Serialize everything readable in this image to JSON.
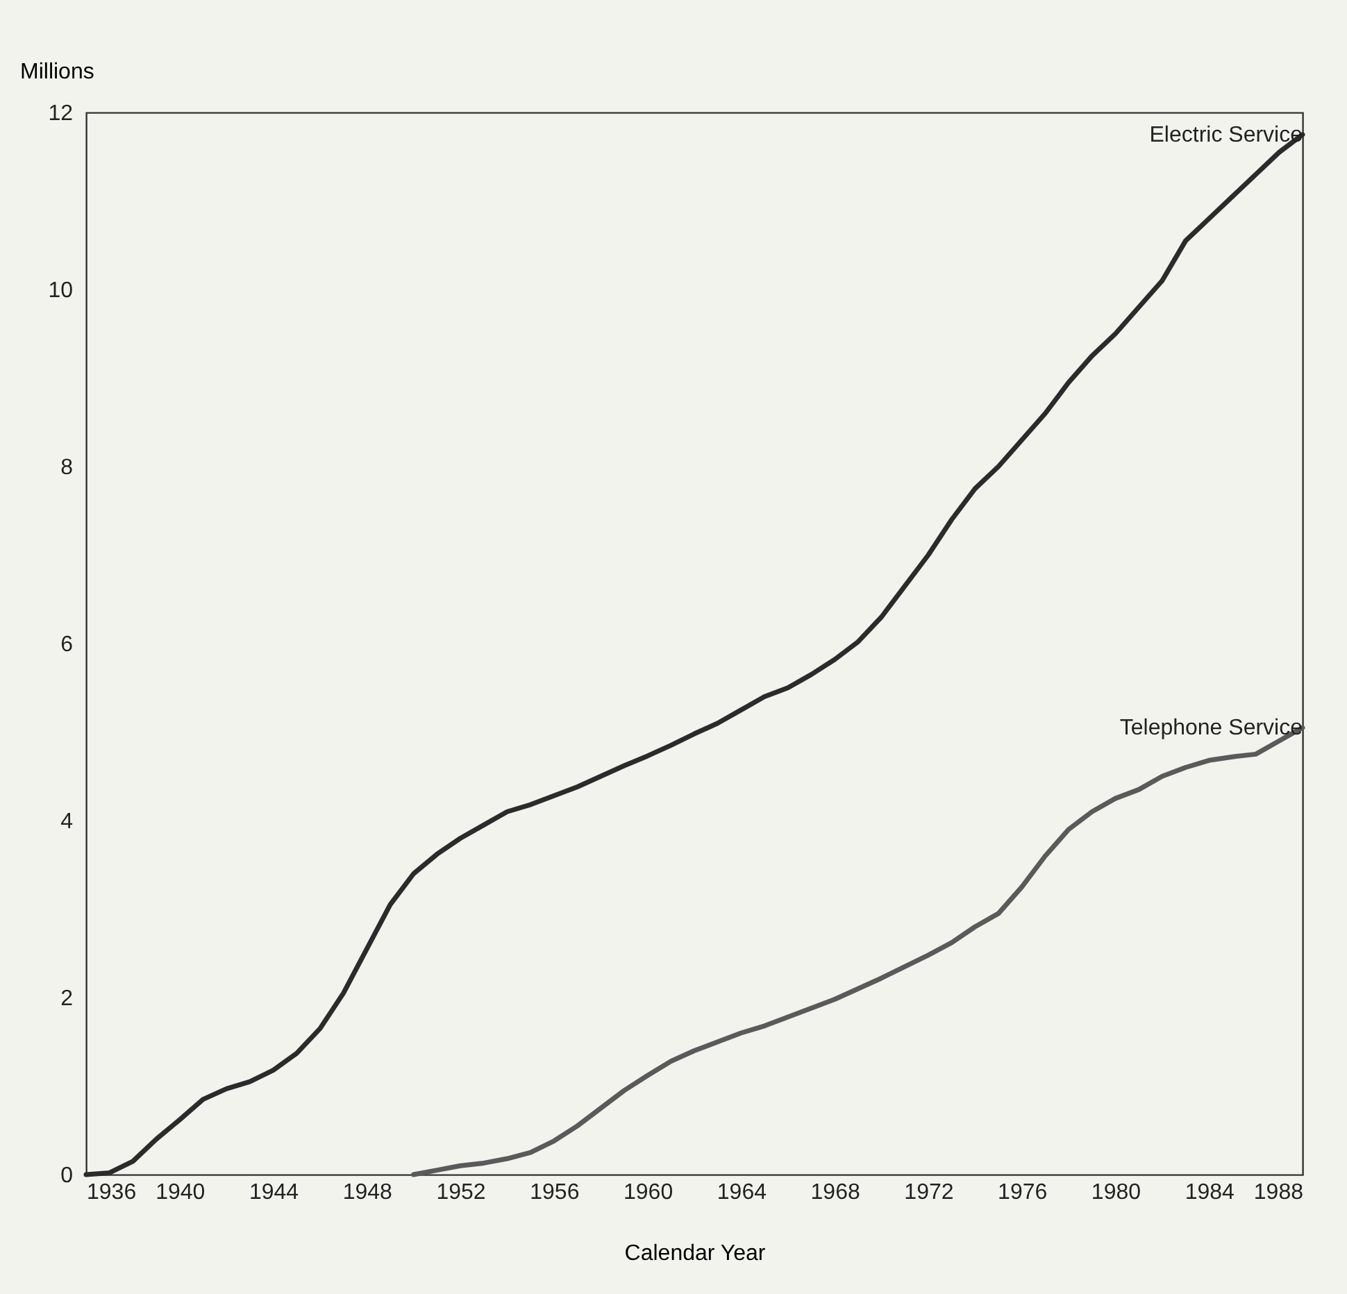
{
  "chart_data": {
    "type": "line",
    "ylabel": "Millions",
    "xlabel": "Calendar Year",
    "x": [
      1936,
      1937,
      1938,
      1939,
      1940,
      1941,
      1942,
      1943,
      1944,
      1945,
      1946,
      1947,
      1948,
      1949,
      1950,
      1951,
      1952,
      1953,
      1954,
      1955,
      1956,
      1957,
      1958,
      1959,
      1960,
      1961,
      1962,
      1963,
      1964,
      1965,
      1966,
      1967,
      1968,
      1969,
      1970,
      1971,
      1972,
      1973,
      1974,
      1975,
      1976,
      1977,
      1978,
      1979,
      1980,
      1981,
      1982,
      1983,
      1984,
      1985,
      1986,
      1987,
      1988
    ],
    "series": [
      {
        "name": "Electric Service",
        "color": "#2b2b2b",
        "values": [
          0,
          0.02,
          0.15,
          0.4,
          0.62,
          0.85,
          0.97,
          1.05,
          1.18,
          1.37,
          1.65,
          2.05,
          2.55,
          3.05,
          3.4,
          3.62,
          3.8,
          3.95,
          4.1,
          4.18,
          4.28,
          4.38,
          4.5,
          4.62,
          4.73,
          4.85,
          4.98,
          5.1,
          5.25,
          5.4,
          5.5,
          5.65,
          5.82,
          6.02,
          6.3,
          6.65,
          7.0,
          7.4,
          7.75,
          8.0,
          8.3,
          8.6,
          8.95,
          9.25,
          9.5,
          9.8,
          10.1,
          10.55,
          10.8,
          11.05,
          11.3,
          11.55,
          11.75
        ]
      },
      {
        "name": "Telephone Service",
        "color": "#5a5a5a",
        "values": [
          null,
          null,
          null,
          null,
          null,
          null,
          null,
          null,
          null,
          null,
          null,
          null,
          null,
          null,
          0,
          0.05,
          0.1,
          0.13,
          0.18,
          0.25,
          0.38,
          0.55,
          0.75,
          0.95,
          1.12,
          1.28,
          1.4,
          1.5,
          1.6,
          1.68,
          1.78,
          1.88,
          1.98,
          2.1,
          2.22,
          2.35,
          2.48,
          2.62,
          2.8,
          2.95,
          3.25,
          3.6,
          3.9,
          4.1,
          4.25,
          4.35,
          4.5,
          4.6,
          4.68,
          4.72,
          4.75,
          4.9,
          5.05
        ]
      }
    ],
    "xlim": [
      1936,
      1988
    ],
    "xticks": [
      1936,
      1940,
      1944,
      1948,
      1952,
      1956,
      1960,
      1964,
      1968,
      1972,
      1976,
      1980,
      1984,
      1988
    ],
    "ylim": [
      0,
      12
    ],
    "yticks": [
      0,
      2,
      4,
      6,
      8,
      10,
      12
    ],
    "grid": false,
    "legend": false
  }
}
